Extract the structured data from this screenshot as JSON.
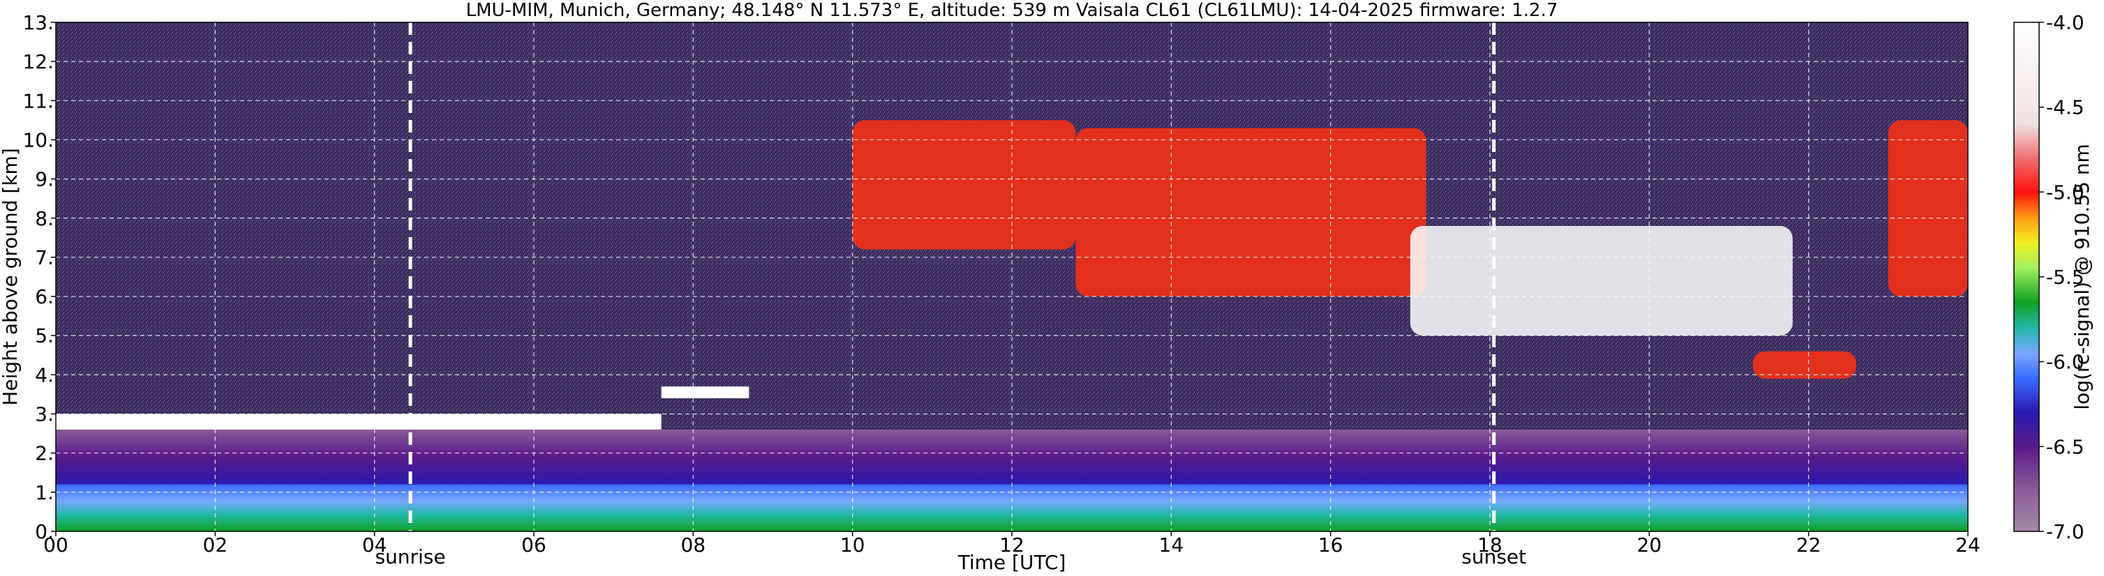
{
  "chart_data": {
    "type": "heatmap",
    "title": "LMU-MIM, Munich, Germany; 48.148° N 11.573° E, altitude: 539 m    Vaisala CL61 (CL61LMU): 14-04-2025    firmware: 1.2.7",
    "xlabel": "Time [UTC]",
    "ylabel": "Height above ground [km]",
    "xlim": [
      0,
      24
    ],
    "ylim": [
      0,
      13
    ],
    "x_ticks": [
      {
        "value": 0,
        "label": "00"
      },
      {
        "value": 2,
        "label": "02"
      },
      {
        "value": 4,
        "label": "04"
      },
      {
        "value": 6,
        "label": "06"
      },
      {
        "value": 8,
        "label": "08"
      },
      {
        "value": 10,
        "label": "10"
      },
      {
        "value": 12,
        "label": "12"
      },
      {
        "value": 14,
        "label": "14"
      },
      {
        "value": 16,
        "label": "16"
      },
      {
        "value": 18,
        "label": "18"
      },
      {
        "value": 20,
        "label": "20"
      },
      {
        "value": 22,
        "label": "22"
      },
      {
        "value": 24,
        "label": "24"
      }
    ],
    "y_ticks": [
      {
        "value": 0,
        "label": "0."
      },
      {
        "value": 1,
        "label": "1."
      },
      {
        "value": 2,
        "label": "2."
      },
      {
        "value": 3,
        "label": "3."
      },
      {
        "value": 4,
        "label": "4."
      },
      {
        "value": 5,
        "label": "5."
      },
      {
        "value": 6,
        "label": "6."
      },
      {
        "value": 7,
        "label": "7."
      },
      {
        "value": 8,
        "label": "8."
      },
      {
        "value": 9,
        "label": "9."
      },
      {
        "value": 10,
        "label": "10."
      },
      {
        "value": 11,
        "label": "11."
      },
      {
        "value": 12,
        "label": "12."
      },
      {
        "value": 13,
        "label": "13."
      }
    ],
    "grid": true,
    "events": [
      {
        "label": "sunrise",
        "time": 4.45
      },
      {
        "label": "sunset",
        "time": 18.05
      }
    ],
    "colorbar": {
      "label": "log(rc-signal) @ 910.55 nm",
      "range": [
        -7.0,
        -4.0
      ],
      "ticks": [
        {
          "value": -4.0,
          "label": "-4.0"
        },
        {
          "value": -4.5,
          "label": "-4.5"
        },
        {
          "value": -5.0,
          "label": "-5.0"
        },
        {
          "value": -5.5,
          "label": "-5.5"
        },
        {
          "value": -6.0,
          "label": "-6.0"
        },
        {
          "value": -6.5,
          "label": "-6.5"
        },
        {
          "value": -7.0,
          "label": "-7.0"
        }
      ],
      "stops": [
        {
          "value": -7.0,
          "color": "#a58aa8"
        },
        {
          "value": -6.75,
          "color": "#8a5a98"
        },
        {
          "value": -6.5,
          "color": "#5a1a8a"
        },
        {
          "value": -6.3,
          "color": "#2a1ab0"
        },
        {
          "value": -6.1,
          "color": "#3a6aff"
        },
        {
          "value": -5.95,
          "color": "#7aa8ff"
        },
        {
          "value": -5.8,
          "color": "#20b8a8"
        },
        {
          "value": -5.65,
          "color": "#10a020"
        },
        {
          "value": -5.45,
          "color": "#a0f060"
        },
        {
          "value": -5.3,
          "color": "#f0f020"
        },
        {
          "value": -5.15,
          "color": "#ff9a10"
        },
        {
          "value": -5.0,
          "color": "#ff1010"
        },
        {
          "value": -4.8,
          "color": "#f07070"
        },
        {
          "value": -4.6,
          "color": "#f0e0e0"
        },
        {
          "value": -4.0,
          "color": "#ffffff"
        }
      ]
    },
    "features": [
      {
        "name": "boundary layer",
        "color": "#10a020",
        "x_start": 0,
        "x_end": 24,
        "y_bottom": 0,
        "y_top": 1.2
      },
      {
        "name": "residual layer",
        "color": "#2a40d8",
        "x_start": 0,
        "x_end": 24,
        "y_bottom": 1.2,
        "y_top": 2.6
      },
      {
        "name": "low cloud",
        "color": "#ffffff",
        "x_start": 0,
        "x_end": 7.6,
        "y_bottom": 2.6,
        "y_top": 3.0
      },
      {
        "name": "elevated cloud",
        "color": "#ffffff",
        "x_start": 7.6,
        "x_end": 8.7,
        "y_bottom": 3.4,
        "y_top": 3.7
      },
      {
        "name": "cirrus",
        "color": "#ff3010",
        "x_start": 10.0,
        "x_end": 12.8,
        "y_bottom": 7.2,
        "y_top": 10.5
      },
      {
        "name": "cirrus",
        "color": "#ff3010",
        "x_start": 12.8,
        "x_end": 17.2,
        "y_bottom": 6.0,
        "y_top": 10.3
      },
      {
        "name": "cirrus",
        "color": "#ffffff",
        "x_start": 17.0,
        "x_end": 21.8,
        "y_bottom": 5.0,
        "y_top": 7.8
      },
      {
        "name": "cirrus",
        "color": "#ff3010",
        "x_start": 21.3,
        "x_end": 22.6,
        "y_bottom": 3.9,
        "y_top": 4.6
      },
      {
        "name": "cirrus",
        "color": "#ff3010",
        "x_start": 23.0,
        "x_end": 24.0,
        "y_bottom": 6.0,
        "y_top": 10.5
      }
    ]
  }
}
